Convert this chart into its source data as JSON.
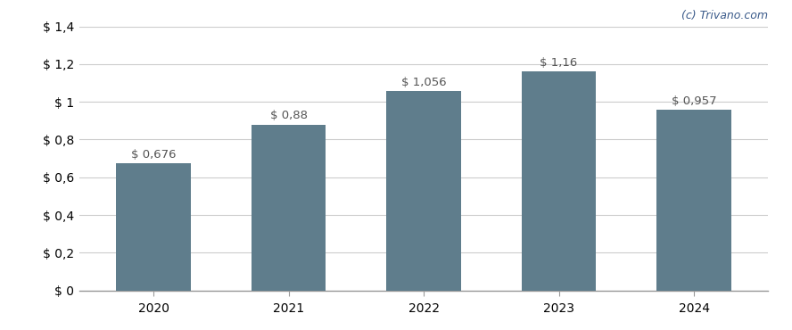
{
  "categories": [
    "2020",
    "2021",
    "2022",
    "2023",
    "2024"
  ],
  "values": [
    0.676,
    0.88,
    1.056,
    1.16,
    0.957
  ],
  "bar_color": "#5f7d8c",
  "bar_labels": [
    "$ 0,676",
    "$ 0,88",
    "$ 1,056",
    "$ 1,16",
    "$ 0,957"
  ],
  "ylim": [
    0,
    1.4
  ],
  "yticks": [
    0,
    0.2,
    0.4,
    0.6,
    0.8,
    1.0,
    1.2,
    1.4
  ],
  "ytick_labels": [
    "$ 0",
    "$ 0,2",
    "$ 0,4",
    "$ 0,6",
    "$ 0,8",
    "$ 1",
    "$ 1,2",
    "$ 1,4"
  ],
  "background_color": "#ffffff",
  "grid_color": "#cccccc",
  "bar_label_color": "#555555",
  "bar_label_fontsize": 9.5,
  "axis_tick_fontsize": 10,
  "watermark": "(c) Trivano.com",
  "watermark_color": "#3a5a8a",
  "bar_width": 0.55
}
